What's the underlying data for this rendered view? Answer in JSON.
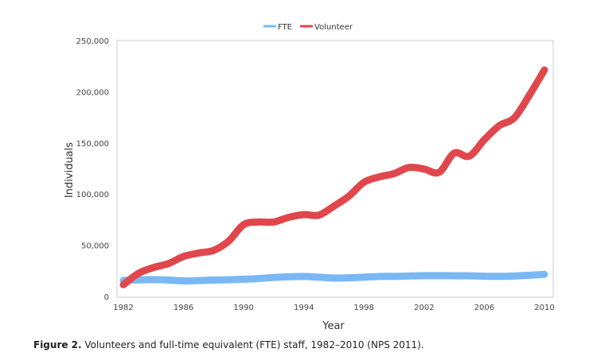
{
  "chart_data": {
    "type": "line",
    "title": "",
    "xlabel": "Year",
    "ylabel": "Individuals",
    "xlim": [
      1982,
      2010
    ],
    "ylim": [
      0,
      250000
    ],
    "x_ticks": [
      "1982",
      "1986",
      "1990",
      "1994",
      "1998",
      "2002",
      "2006",
      "2010"
    ],
    "y_ticks": [
      "0",
      "50,000",
      "100,000",
      "150,000",
      "200,000",
      "250,000"
    ],
    "grid": false,
    "legend_position": "top",
    "x": [
      1982,
      1983,
      1984,
      1985,
      1986,
      1987,
      1988,
      1989,
      1990,
      1991,
      1992,
      1993,
      1994,
      1995,
      1996,
      1997,
      1998,
      1999,
      2000,
      2001,
      2002,
      2003,
      2004,
      2005,
      2006,
      2007,
      2008,
      2009,
      2010
    ],
    "series": [
      {
        "name": "FTE",
        "color": "#79b8f5",
        "values": [
          15600,
          16200,
          16400,
          16000,
          15200,
          15500,
          16000,
          16300,
          16800,
          17500,
          18500,
          19200,
          19500,
          18800,
          18000,
          18200,
          18800,
          19500,
          19600,
          20000,
          20300,
          20300,
          20200,
          20200,
          19800,
          19600,
          20000,
          20700,
          21500
        ]
      },
      {
        "name": "Volunteer",
        "color": "#e0474c",
        "values": [
          11400,
          22500,
          28200,
          32100,
          39000,
          42400,
          45000,
          54000,
          70100,
          72700,
          72700,
          77300,
          79900,
          79400,
          88200,
          98000,
          111500,
          116700,
          120000,
          126000,
          124500,
          121300,
          140000,
          137000,
          153000,
          166800,
          174500,
          196600,
          221200
        ]
      }
    ]
  },
  "caption": {
    "label": "Figure 2.",
    "text": " Volunteers and full-time equivalent (FTE) staff, 1982–2010 (NPS 2011)."
  }
}
